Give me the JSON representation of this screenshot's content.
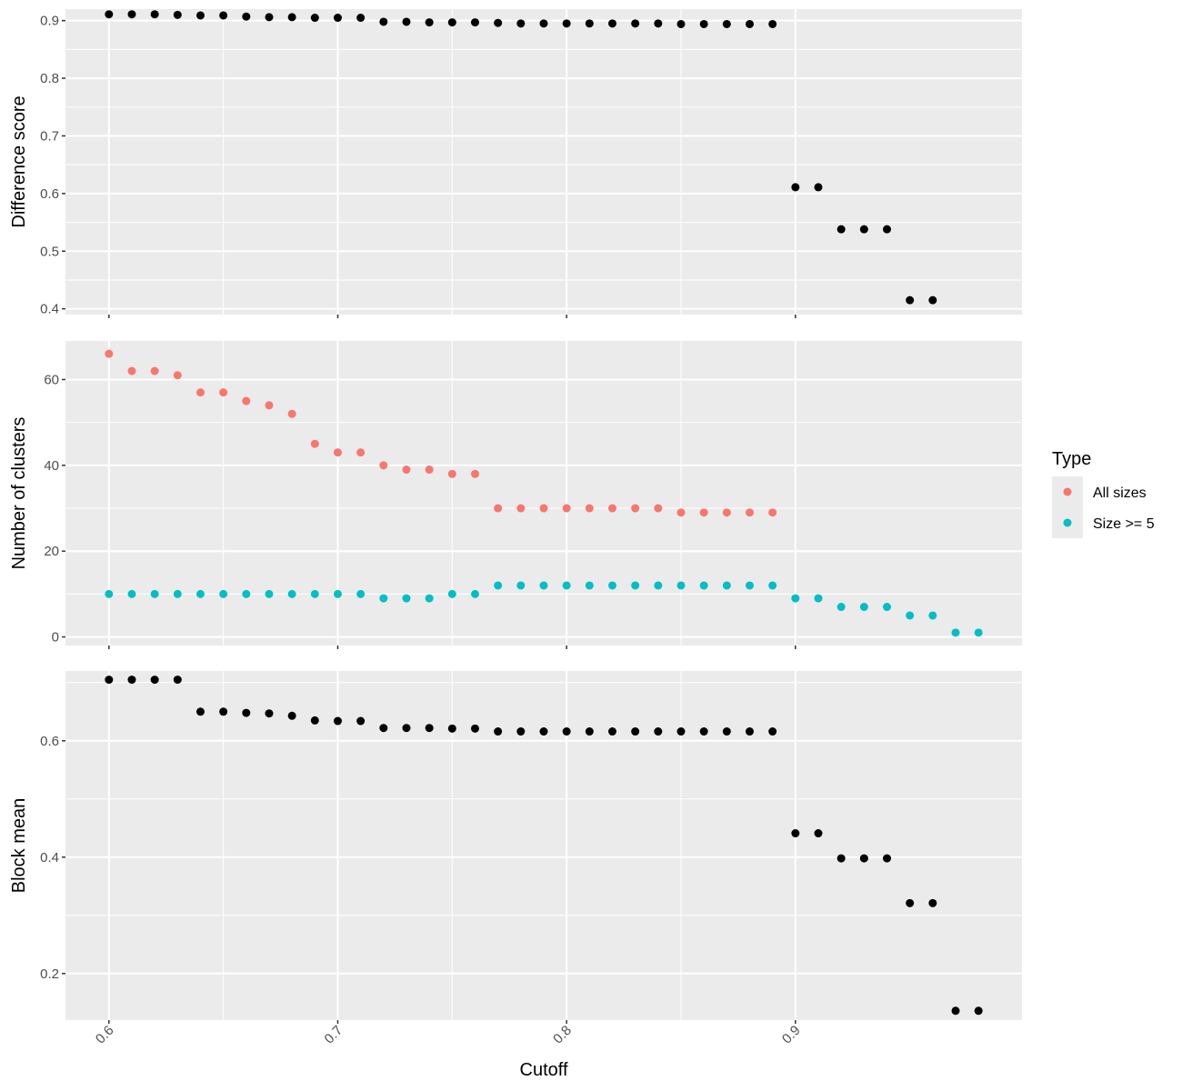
{
  "chart_data": {
    "type": "scatter",
    "xlabel": "Cutoff",
    "x_ticks": [
      0.6,
      0.7,
      0.8,
      0.9
    ],
    "xlim": [
      0.581,
      0.999
    ],
    "legend": {
      "title": "Type",
      "placement": "right",
      "entries": [
        {
          "name": "All sizes",
          "color": "#F8766D"
        },
        {
          "name": "Size >= 5",
          "color": "#00BFC4"
        }
      ]
    },
    "panels": [
      {
        "ylabel": "Difference score",
        "ylim": [
          0.39,
          0.92
        ],
        "y_ticks": [
          0.4,
          0.5,
          0.6,
          0.7,
          0.8,
          0.9
        ],
        "series": [
          {
            "color": "#000000",
            "x": [
              0.6,
              0.61,
              0.62,
              0.63,
              0.64,
              0.65,
              0.66,
              0.67,
              0.68,
              0.69,
              0.7,
              0.71,
              0.72,
              0.73,
              0.74,
              0.75,
              0.76,
              0.77,
              0.78,
              0.79,
              0.8,
              0.81,
              0.82,
              0.83,
              0.84,
              0.85,
              0.86,
              0.87,
              0.88,
              0.89,
              0.9,
              0.91,
              0.92,
              0.93,
              0.94,
              0.95,
              0.96
            ],
            "y": [
              0.911,
              0.911,
              0.911,
              0.91,
              0.909,
              0.909,
              0.907,
              0.906,
              0.906,
              0.905,
              0.905,
              0.905,
              0.898,
              0.898,
              0.897,
              0.897,
              0.897,
              0.896,
              0.895,
              0.895,
              0.895,
              0.895,
              0.895,
              0.895,
              0.895,
              0.894,
              0.894,
              0.894,
              0.894,
              0.894,
              0.611,
              0.611,
              0.538,
              0.538,
              0.538,
              0.415,
              0.415
            ]
          }
        ]
      },
      {
        "ylabel": "Number of clusters",
        "ylim": [
          -2,
          69
        ],
        "y_ticks": [
          0,
          20,
          40,
          60
        ],
        "series": [
          {
            "name": "All sizes",
            "color": "#F8766D",
            "x": [
              0.6,
              0.61,
              0.62,
              0.63,
              0.64,
              0.65,
              0.66,
              0.67,
              0.68,
              0.69,
              0.7,
              0.71,
              0.72,
              0.73,
              0.74,
              0.75,
              0.76,
              0.77,
              0.78,
              0.79,
              0.8,
              0.81,
              0.82,
              0.83,
              0.84,
              0.85,
              0.86,
              0.87,
              0.88,
              0.89
            ],
            "y": [
              66,
              62,
              62,
              61,
              57,
              57,
              55,
              54,
              52,
              45,
              43,
              43,
              40,
              39,
              39,
              38,
              38,
              30,
              30,
              30,
              30,
              30,
              30,
              30,
              30,
              29,
              29,
              29,
              29,
              29
            ]
          },
          {
            "name": "Size >= 5",
            "color": "#00BFC4",
            "x": [
              0.6,
              0.61,
              0.62,
              0.63,
              0.64,
              0.65,
              0.66,
              0.67,
              0.68,
              0.69,
              0.7,
              0.71,
              0.72,
              0.73,
              0.74,
              0.75,
              0.76,
              0.77,
              0.78,
              0.79,
              0.8,
              0.81,
              0.82,
              0.83,
              0.84,
              0.85,
              0.86,
              0.87,
              0.88,
              0.89,
              0.9,
              0.91,
              0.92,
              0.93,
              0.94,
              0.95,
              0.96,
              0.97,
              0.98
            ],
            "y": [
              10,
              10,
              10,
              10,
              10,
              10,
              10,
              10,
              10,
              10,
              10,
              10,
              9,
              9,
              9,
              10,
              10,
              12,
              12,
              12,
              12,
              12,
              12,
              12,
              12,
              12,
              12,
              12,
              12,
              12,
              9,
              9,
              7,
              7,
              7,
              5,
              5,
              1,
              1
            ]
          }
        ]
      },
      {
        "ylabel": "Block mean",
        "ylim": [
          0.12,
          0.72
        ],
        "y_ticks": [
          0.2,
          0.4,
          0.6
        ],
        "series": [
          {
            "color": "#000000",
            "x": [
              0.6,
              0.61,
              0.62,
              0.63,
              0.64,
              0.65,
              0.66,
              0.67,
              0.68,
              0.69,
              0.7,
              0.71,
              0.72,
              0.73,
              0.74,
              0.75,
              0.76,
              0.77,
              0.78,
              0.79,
              0.8,
              0.81,
              0.82,
              0.83,
              0.84,
              0.85,
              0.86,
              0.87,
              0.88,
              0.89,
              0.9,
              0.91,
              0.92,
              0.93,
              0.94,
              0.95,
              0.96,
              0.97,
              0.98
            ],
            "y": [
              0.705,
              0.705,
              0.705,
              0.705,
              0.65,
              0.65,
              0.648,
              0.647,
              0.643,
              0.635,
              0.634,
              0.634,
              0.622,
              0.622,
              0.622,
              0.621,
              0.621,
              0.616,
              0.616,
              0.616,
              0.616,
              0.616,
              0.616,
              0.616,
              0.616,
              0.616,
              0.616,
              0.616,
              0.616,
              0.616,
              0.441,
              0.441,
              0.398,
              0.398,
              0.398,
              0.321,
              0.321,
              0.136,
              0.136
            ]
          }
        ]
      }
    ]
  }
}
